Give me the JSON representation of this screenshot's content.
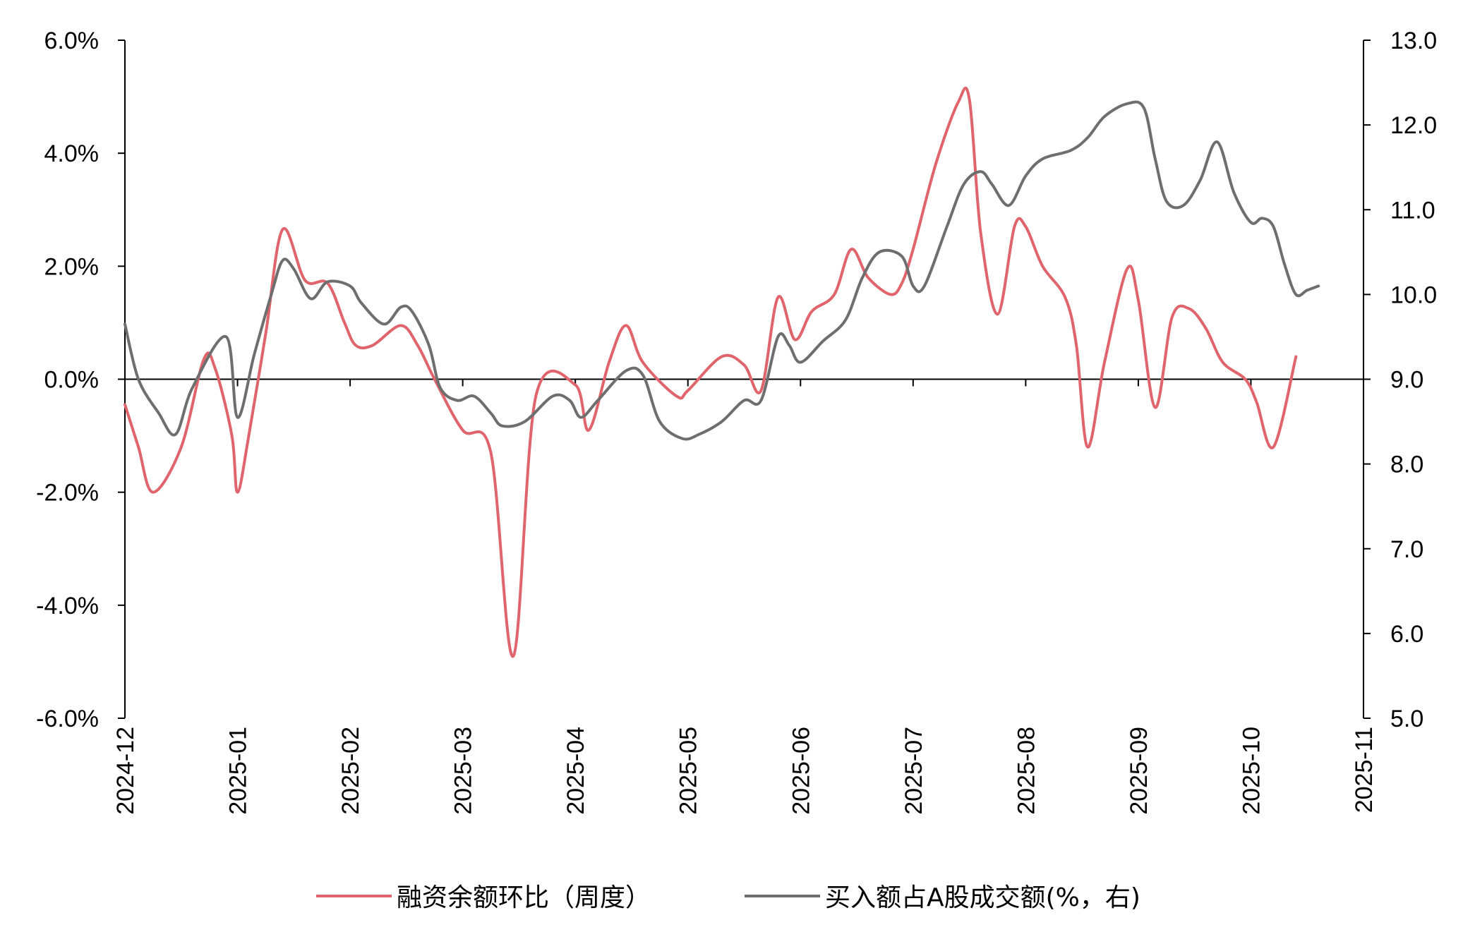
{
  "chart_data": {
    "type": "line",
    "x_tick_labels": [
      "2024-12",
      "2025-01",
      "2025-02",
      "2025-03",
      "2025-04",
      "2025-05",
      "2025-06",
      "2025-07",
      "2025-08",
      "2025-09",
      "2025-10",
      "2025-11"
    ],
    "y_left": {
      "ticks": [
        "6.0%",
        "4.0%",
        "2.0%",
        "0.0%",
        "-2.0%",
        "-4.0%",
        "-6.0%"
      ],
      "min": -6,
      "max": 6
    },
    "y_right": {
      "ticks": [
        "13.0",
        "12.0",
        "11.0",
        "10.0",
        "9.0",
        "8.0",
        "7.0",
        "6.0",
        "5.0"
      ],
      "min": 5,
      "max": 13
    },
    "grid": false,
    "legend_position": "bottom",
    "series": [
      {
        "name": "融资余额环比（周度）",
        "axis": "left",
        "color": "#e0646c",
        "points": [
          [
            0.0,
            -0.45
          ],
          [
            0.12,
            -1.2
          ],
          [
            0.25,
            -2.0
          ],
          [
            0.5,
            -1.2
          ],
          [
            0.7,
            0.35
          ],
          [
            0.8,
            0.2
          ],
          [
            0.95,
            -1.0
          ],
          [
            1.0,
            -2.0
          ],
          [
            1.1,
            -1.0
          ],
          [
            1.25,
            0.8
          ],
          [
            1.4,
            2.65
          ],
          [
            1.6,
            1.75
          ],
          [
            1.8,
            1.7
          ],
          [
            1.95,
            1.0
          ],
          [
            2.05,
            0.6
          ],
          [
            2.2,
            0.6
          ],
          [
            2.45,
            0.95
          ],
          [
            2.6,
            0.6
          ],
          [
            2.75,
            0.0
          ],
          [
            3.0,
            -0.9
          ],
          [
            3.25,
            -1.3
          ],
          [
            3.45,
            -4.9
          ],
          [
            3.65,
            -0.3
          ],
          [
            4.0,
            -0.1
          ],
          [
            4.12,
            -0.9
          ],
          [
            4.3,
            0.3
          ],
          [
            4.45,
            0.95
          ],
          [
            4.6,
            0.3
          ],
          [
            4.9,
            -0.3
          ],
          [
            5.0,
            -0.2
          ],
          [
            5.3,
            0.4
          ],
          [
            5.5,
            0.25
          ],
          [
            5.65,
            -0.2
          ],
          [
            5.8,
            1.45
          ],
          [
            5.95,
            0.7
          ],
          [
            6.1,
            1.2
          ],
          [
            6.3,
            1.5
          ],
          [
            6.45,
            2.3
          ],
          [
            6.6,
            1.8
          ],
          [
            6.8,
            1.5
          ],
          [
            6.9,
            1.7
          ],
          [
            7.0,
            2.3
          ],
          [
            7.2,
            3.8
          ],
          [
            7.4,
            4.9
          ],
          [
            7.5,
            4.95
          ],
          [
            7.6,
            2.6
          ],
          [
            7.75,
            1.15
          ],
          [
            7.9,
            2.7
          ],
          [
            8.0,
            2.7
          ],
          [
            8.15,
            2.0
          ],
          [
            8.35,
            1.45
          ],
          [
            8.45,
            0.6
          ],
          [
            8.55,
            -1.2
          ],
          [
            8.7,
            0.3
          ],
          [
            8.9,
            1.95
          ],
          [
            9.0,
            1.4
          ],
          [
            9.15,
            -0.5
          ],
          [
            9.3,
            1.1
          ],
          [
            9.45,
            1.25
          ],
          [
            9.6,
            0.9
          ],
          [
            9.75,
            0.3
          ],
          [
            9.95,
            0.0
          ],
          [
            10.05,
            -0.4
          ],
          [
            10.2,
            -1.2
          ],
          [
            10.4,
            0.4
          ]
        ]
      },
      {
        "name": "买入额占A股成交额(%，右)",
        "axis": "right",
        "color": "#6e6e6e",
        "points": [
          [
            0.0,
            9.65
          ],
          [
            0.12,
            9.0
          ],
          [
            0.3,
            8.6
          ],
          [
            0.45,
            8.35
          ],
          [
            0.6,
            8.9
          ],
          [
            0.9,
            9.5
          ],
          [
            1.0,
            8.55
          ],
          [
            1.15,
            9.3
          ],
          [
            1.3,
            10.0
          ],
          [
            1.4,
            10.4
          ],
          [
            1.5,
            10.3
          ],
          [
            1.65,
            9.95
          ],
          [
            1.8,
            10.15
          ],
          [
            2.0,
            10.1
          ],
          [
            2.1,
            9.9
          ],
          [
            2.3,
            9.65
          ],
          [
            2.45,
            9.85
          ],
          [
            2.55,
            9.8
          ],
          [
            2.7,
            9.4
          ],
          [
            2.8,
            8.9
          ],
          [
            2.95,
            8.75
          ],
          [
            3.1,
            8.8
          ],
          [
            3.25,
            8.6
          ],
          [
            3.35,
            8.45
          ],
          [
            3.55,
            8.5
          ],
          [
            3.8,
            8.8
          ],
          [
            3.95,
            8.75
          ],
          [
            4.05,
            8.55
          ],
          [
            4.2,
            8.75
          ],
          [
            4.45,
            9.1
          ],
          [
            4.6,
            9.05
          ],
          [
            4.75,
            8.5
          ],
          [
            4.95,
            8.3
          ],
          [
            5.1,
            8.35
          ],
          [
            5.3,
            8.5
          ],
          [
            5.5,
            8.75
          ],
          [
            5.65,
            8.75
          ],
          [
            5.8,
            9.5
          ],
          [
            5.9,
            9.4
          ],
          [
            6.0,
            9.2
          ],
          [
            6.2,
            9.45
          ],
          [
            6.4,
            9.7
          ],
          [
            6.55,
            10.2
          ],
          [
            6.7,
            10.5
          ],
          [
            6.9,
            10.45
          ],
          [
            7.0,
            10.1
          ],
          [
            7.1,
            10.1
          ],
          [
            7.3,
            10.8
          ],
          [
            7.45,
            11.3
          ],
          [
            7.6,
            11.45
          ],
          [
            7.7,
            11.3
          ],
          [
            7.85,
            11.05
          ],
          [
            8.0,
            11.4
          ],
          [
            8.15,
            11.6
          ],
          [
            8.4,
            11.7
          ],
          [
            8.55,
            11.85
          ],
          [
            8.7,
            12.1
          ],
          [
            8.9,
            12.25
          ],
          [
            9.05,
            12.2
          ],
          [
            9.15,
            11.6
          ],
          [
            9.25,
            11.1
          ],
          [
            9.4,
            11.05
          ],
          [
            9.55,
            11.35
          ],
          [
            9.7,
            11.8
          ],
          [
            9.85,
            11.2
          ],
          [
            10.0,
            10.85
          ],
          [
            10.1,
            10.9
          ],
          [
            10.2,
            10.8
          ],
          [
            10.3,
            10.35
          ],
          [
            10.4,
            10.0
          ],
          [
            10.5,
            10.05
          ],
          [
            10.6,
            10.1
          ]
        ]
      }
    ]
  }
}
